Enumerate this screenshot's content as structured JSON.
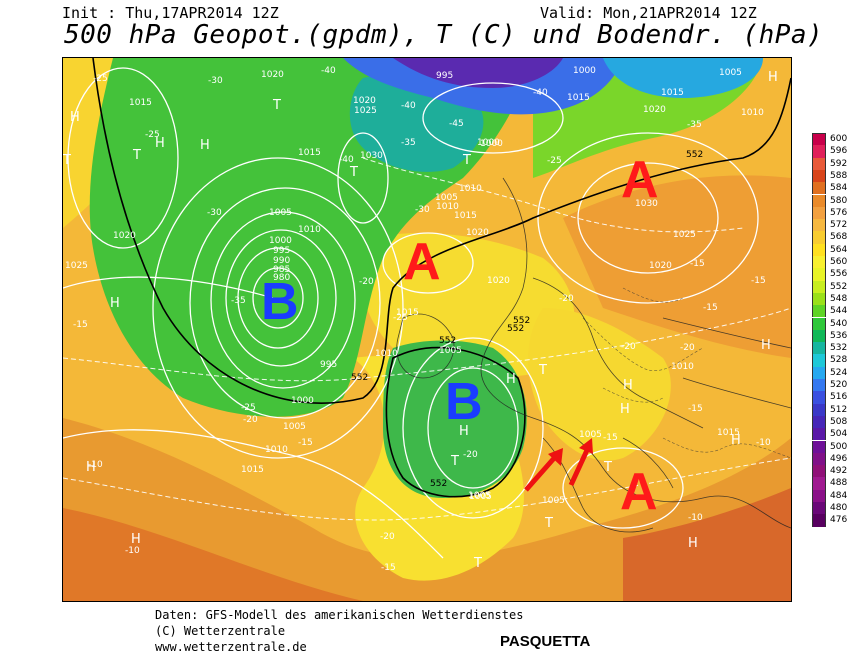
{
  "header": {
    "init": "Init : Thu,17APR2014 12Z",
    "valid": "Valid: Mon,21APR2014 12Z",
    "title": "500 hPa Geopot.(gpdm), T (C) und Bodendr. (hPa)"
  },
  "systems": [
    {
      "label": "A",
      "color": "#ff1a1a"
    },
    {
      "label": "A",
      "color": "#ff1a1a"
    },
    {
      "label": "A",
      "color": "#ff1a1a"
    },
    {
      "label": "B",
      "color": "#1a3cff"
    },
    {
      "label": "B",
      "color": "#1a3cff"
    }
  ],
  "pressure_labels": [
    "1020",
    "1015",
    "1025",
    "1020",
    "1005",
    "1010",
    "1000",
    "995",
    "990",
    "985",
    "980",
    "995",
    "1000",
    "1005",
    "1010",
    "1015",
    "1020",
    "1015",
    "1010",
    "1005",
    "1005",
    "1000",
    "1005",
    "1010",
    "1015",
    "1020",
    "1025",
    "1030",
    "1020",
    "1015",
    "1010",
    "1005",
    "1010",
    "1015",
    "1020",
    "1030",
    "1025",
    "1020",
    "1015",
    "1005",
    "1010",
    "1005",
    "1015",
    "1000",
    "995",
    "1000",
    "1005"
  ],
  "temperature_labels": [
    "-25",
    "-25",
    "-30",
    "-30",
    "-35",
    "-40",
    "-40",
    "-35",
    "-30",
    "-25",
    "-20",
    "-20",
    "-25",
    "-20",
    "-15",
    "-15",
    "-10",
    "-15",
    "-20",
    "-15",
    "-10",
    "-10",
    "-15",
    "-20",
    "-15",
    "-15",
    "-10",
    "-20",
    "-25",
    "-20",
    "-15",
    "-40",
    "-45",
    "-40",
    "-35"
  ],
  "geopot_labels": [
    "552",
    "552",
    "552",
    "552",
    "552",
    "552"
  ],
  "hl_markers": [
    "H",
    "H",
    "H",
    "H",
    "H",
    "H",
    "H",
    "H",
    "H",
    "H",
    "H",
    "H",
    "H",
    "H",
    "T",
    "T",
    "T",
    "T",
    "T",
    "T",
    "T",
    "T",
    "T",
    "T"
  ],
  "colorbar": {
    "values": [
      "600",
      "596",
      "592",
      "588",
      "584",
      "580",
      "576",
      "572",
      "568",
      "564",
      "560",
      "556",
      "552",
      "548",
      "544",
      "540",
      "536",
      "532",
      "528",
      "524",
      "520",
      "516",
      "512",
      "508",
      "504",
      "500",
      "496",
      "492",
      "488",
      "484",
      "480",
      "476"
    ],
    "colors": [
      "#c8004a",
      "#e0205a",
      "#e85a3a",
      "#d8441a",
      "#e07020",
      "#ea8a2a",
      "#f2a040",
      "#f6b840",
      "#f8cc30",
      "#ffe020",
      "#f8f030",
      "#e8f428",
      "#c8ee20",
      "#9ae01a",
      "#5ed426",
      "#2ec83a",
      "#10b858",
      "#16b6a0",
      "#1ec8d8",
      "#26a8f0",
      "#3478f0",
      "#3a50e0",
      "#3a38c8",
      "#4626b8",
      "#5a18a8",
      "#6e1098",
      "#801088",
      "#901078",
      "#a01a90",
      "#8a1088",
      "#6a0878",
      "#580060"
    ]
  },
  "footer": {
    "line1": "Daten: GFS-Modell des amerikanischen Wetterdienstes",
    "line2": "(C) Wetterzentrale",
    "line3": "www.wetterzentrale.de",
    "caption": "PASQUETTA"
  }
}
